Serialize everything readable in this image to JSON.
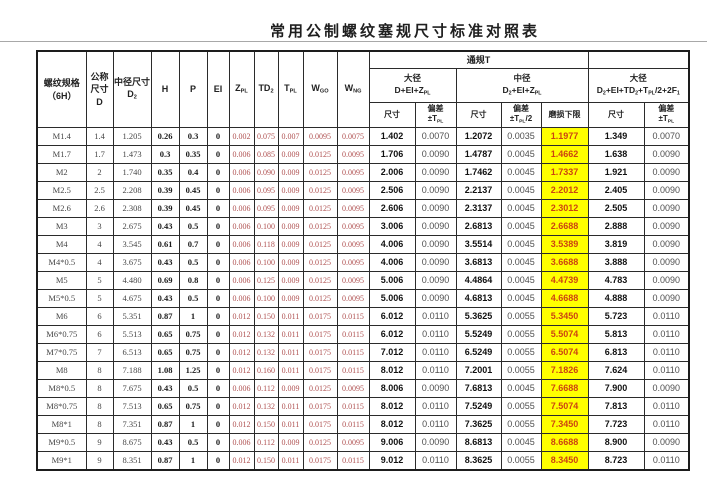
{
  "title": "常用公制螺纹塞规尺寸标准对照表",
  "colors": {
    "wear_limit_background": "#ffff00",
    "wear_limit_text": "#cc4411",
    "tolerance_text_red": "#b05252",
    "border": "#2b2b2b"
  },
  "table": {
    "left_columns": {
      "thread_spec": "螺纹规格\n（6H）",
      "nominal_size": "公称\n尺寸\nD",
      "pitch_diameter_size": "中径尺寸\nD~2~",
      "h": "H",
      "p": "P",
      "ei": "EI",
      "zpl": "Z~PL~",
      "td2": "TD~2~",
      "tpl": "T~PL~",
      "wgo": "W~GO~",
      "wng": "W~NG~"
    },
    "go_gauge_band": "通规T",
    "nogo_band": "",
    "groups": {
      "go_major": "大径\nD+EI+Z~PL~",
      "go_pitch": "中径\nD~2~+EI+Z~PL~",
      "nogo_major": "大径\nD~2~+EI+TD~2~+T~PL~/2+2F~1~"
    },
    "subheaders": {
      "size": "尺寸",
      "deviation_tpl": "偏差\n±T~PL~",
      "deviation_tpl_half": "偏差\n±T~PL~/2",
      "wear_limit": "磨损下限"
    },
    "rows": [
      [
        "M1.4",
        "1.4",
        "1.205",
        "0.26",
        "0.3",
        "0",
        "0.002",
        "0.075",
        "0.007",
        "0.0095",
        "0.0075",
        "1.402",
        "0.0070",
        "1.2072",
        "0.0035",
        "1.1977",
        "1.349",
        "0.0070"
      ],
      [
        "M1.7",
        "1.7",
        "1.473",
        "0.3",
        "0.35",
        "0",
        "0.006",
        "0.085",
        "0.009",
        "0.0125",
        "0.0095",
        "1.706",
        "0.0090",
        "1.4787",
        "0.0045",
        "1.4662",
        "1.638",
        "0.0090"
      ],
      [
        "M2",
        "2",
        "1.740",
        "0.35",
        "0.4",
        "0",
        "0.006",
        "0.090",
        "0.009",
        "0.0125",
        "0.0095",
        "2.006",
        "0.0090",
        "1.7462",
        "0.0045",
        "1.7337",
        "1.921",
        "0.0090"
      ],
      [
        "M2.5",
        "2.5",
        "2.208",
        "0.39",
        "0.45",
        "0",
        "0.006",
        "0.095",
        "0.009",
        "0.0125",
        "0.0095",
        "2.506",
        "0.0090",
        "2.2137",
        "0.0045",
        "2.2012",
        "2.405",
        "0.0090"
      ],
      [
        "M2.6",
        "2.6",
        "2.308",
        "0.39",
        "0.45",
        "0",
        "0.006",
        "0.095",
        "0.009",
        "0.0125",
        "0.0095",
        "2.606",
        "0.0090",
        "2.3137",
        "0.0045",
        "2.3012",
        "2.505",
        "0.0090"
      ],
      [
        "M3",
        "3",
        "2.675",
        "0.43",
        "0.5",
        "0",
        "0.006",
        "0.100",
        "0.009",
        "0.0125",
        "0.0095",
        "3.006",
        "0.0090",
        "2.6813",
        "0.0045",
        "2.6688",
        "2.888",
        "0.0090"
      ],
      [
        "M4",
        "4",
        "3.545",
        "0.61",
        "0.7",
        "0",
        "0.006",
        "0.118",
        "0.009",
        "0.0125",
        "0.0095",
        "4.006",
        "0.0090",
        "3.5514",
        "0.0045",
        "3.5389",
        "3.819",
        "0.0090"
      ],
      [
        "M4*0.5",
        "4",
        "3.675",
        "0.43",
        "0.5",
        "0",
        "0.006",
        "0.100",
        "0.009",
        "0.0125",
        "0.0095",
        "4.006",
        "0.0090",
        "3.6813",
        "0.0045",
        "3.6688",
        "3.888",
        "0.0090"
      ],
      [
        "M5",
        "5",
        "4.480",
        "0.69",
        "0.8",
        "0",
        "0.006",
        "0.125",
        "0.009",
        "0.0125",
        "0.0095",
        "5.006",
        "0.0090",
        "4.4864",
        "0.0045",
        "4.4739",
        "4.783",
        "0.0090"
      ],
      [
        "M5*0.5",
        "5",
        "4.675",
        "0.43",
        "0.5",
        "0",
        "0.006",
        "0.100",
        "0.009",
        "0.0125",
        "0.0095",
        "5.006",
        "0.0090",
        "4.6813",
        "0.0045",
        "4.6688",
        "4.888",
        "0.0090"
      ],
      [
        "M6",
        "6",
        "5.351",
        "0.87",
        "1",
        "0",
        "0.012",
        "0.150",
        "0.011",
        "0.0175",
        "0.0115",
        "6.012",
        "0.0110",
        "5.3625",
        "0.0055",
        "5.3450",
        "5.723",
        "0.0110"
      ],
      [
        "M6*0.75",
        "6",
        "5.513",
        "0.65",
        "0.75",
        "0",
        "0.012",
        "0.132",
        "0.011",
        "0.0175",
        "0.0115",
        "6.012",
        "0.0110",
        "5.5249",
        "0.0055",
        "5.5074",
        "5.813",
        "0.0110"
      ],
      [
        "M7*0.75",
        "7",
        "6.513",
        "0.65",
        "0.75",
        "0",
        "0.012",
        "0.132",
        "0.011",
        "0.0175",
        "0.0115",
        "7.012",
        "0.0110",
        "6.5249",
        "0.0055",
        "6.5074",
        "6.813",
        "0.0110"
      ],
      [
        "M8",
        "8",
        "7.188",
        "1.08",
        "1.25",
        "0",
        "0.012",
        "0.160",
        "0.011",
        "0.0175",
        "0.0115",
        "8.012",
        "0.0110",
        "7.2001",
        "0.0055",
        "7.1826",
        "7.624",
        "0.0110"
      ],
      [
        "M8*0.5",
        "8",
        "7.675",
        "0.43",
        "0.5",
        "0",
        "0.006",
        "0.112",
        "0.009",
        "0.0125",
        "0.0095",
        "8.006",
        "0.0090",
        "7.6813",
        "0.0045",
        "7.6688",
        "7.900",
        "0.0090"
      ],
      [
        "M8*0.75",
        "8",
        "7.513",
        "0.65",
        "0.75",
        "0",
        "0.012",
        "0.132",
        "0.011",
        "0.0175",
        "0.0115",
        "8.012",
        "0.0110",
        "7.5249",
        "0.0055",
        "7.5074",
        "7.813",
        "0.0110"
      ],
      [
        "M8*1",
        "8",
        "7.351",
        "0.87",
        "1",
        "0",
        "0.012",
        "0.150",
        "0.011",
        "0.0175",
        "0.0115",
        "8.012",
        "0.0110",
        "7.3625",
        "0.0055",
        "7.3450",
        "7.723",
        "0.0110"
      ],
      [
        "M9*0.5",
        "9",
        "8.675",
        "0.43",
        "0.5",
        "0",
        "0.006",
        "0.112",
        "0.009",
        "0.0125",
        "0.0095",
        "9.006",
        "0.0090",
        "8.6813",
        "0.0045",
        "8.6688",
        "8.900",
        "0.0090"
      ],
      [
        "M9*1",
        "9",
        "8.351",
        "0.87",
        "1",
        "0",
        "0.012",
        "0.150",
        "0.011",
        "0.0175",
        "0.0115",
        "9.012",
        "0.0110",
        "8.3625",
        "0.0055",
        "8.3450",
        "8.723",
        "0.0110"
      ]
    ],
    "column_names": [
      "thread-spec",
      "nominal-diameter",
      "pitch-diameter",
      "h-value",
      "p-value",
      "ei-value",
      "zpl-value",
      "td2-value",
      "tpl-value",
      "wgo-value",
      "wng-value",
      "go-major-size",
      "go-major-deviation",
      "go-pitch-size",
      "go-pitch-deviation",
      "wear-lower-limit",
      "nogo-major-size",
      "nogo-major-deviation"
    ]
  }
}
